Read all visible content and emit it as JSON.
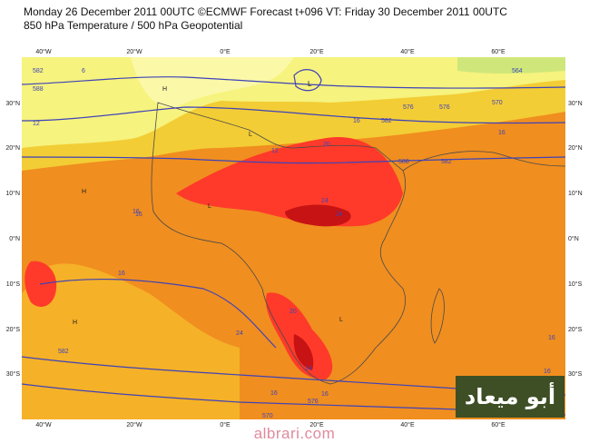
{
  "header": {
    "line1": "Monday 26 December 2011 00UTC ©ECMWF Forecast t+096 VT: Friday 30 December 2011 00UTC",
    "line2": "850 hPa Temperature / 500 hPa Geopotential"
  },
  "axes": {
    "lon_labels": [
      "40°W",
      "20°W",
      "0°E",
      "20°E",
      "40°E",
      "60°E"
    ],
    "lat_labels": [
      "30°N",
      "20°N",
      "10°N",
      "0°N",
      "10°S",
      "20°S",
      "30°S"
    ]
  },
  "map": {
    "contour_labels": [
      "582",
      "588",
      "6",
      "12",
      "16",
      "H",
      "L",
      "12",
      "16",
      "L",
      "576",
      "570",
      "564",
      "576",
      "582",
      "16",
      "582",
      "20",
      "588",
      "24",
      "24",
      "16",
      "20",
      "24",
      "16",
      "16",
      "24",
      "16",
      "582",
      "576",
      "570",
      "16",
      "16",
      "H",
      "L",
      "H",
      "L"
    ],
    "colors": {
      "ocean_background": "#f08e1f",
      "band_cool": "#f6f37e",
      "band_mild": "#f3cd35",
      "band_warm": "#f5b127",
      "band_hot": "#ff3a2a",
      "band_hottest": "#c71313",
      "contour": "#3f43b8",
      "coast": "#4a4a4a",
      "brand_box": "#3e4f25"
    }
  },
  "brand": {
    "arabic_text": "أبو ميعاد"
  },
  "footer": {
    "site": "albrari.com"
  }
}
